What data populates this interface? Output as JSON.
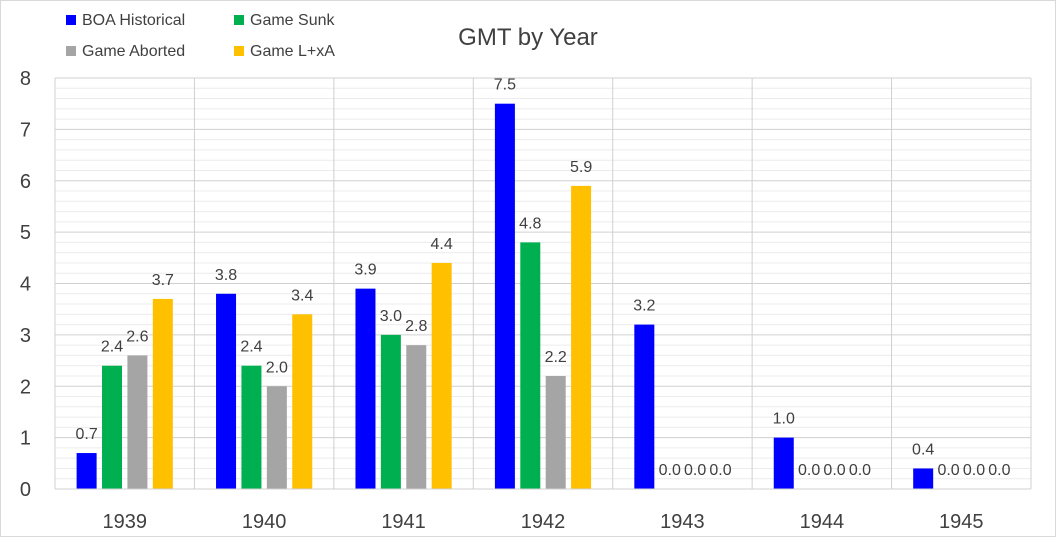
{
  "chart_data": {
    "type": "bar",
    "title": "GMT by Year",
    "xlabel": "",
    "ylabel": "",
    "categories": [
      "1939",
      "1940",
      "1941",
      "1942",
      "1943",
      "1944",
      "1945"
    ],
    "ylim": [
      0,
      8
    ],
    "yticks": [
      0,
      1,
      2,
      3,
      4,
      5,
      6,
      7,
      8
    ],
    "grid": true,
    "legend_position": "top-left",
    "series": [
      {
        "name": "BOA Historical",
        "color": "#0000ff",
        "values": [
          0.7,
          3.8,
          3.9,
          7.5,
          3.2,
          1.0,
          0.4
        ],
        "labels": [
          "0.7",
          "3.8",
          "3.9",
          "7.5",
          "3.2",
          "1.0",
          "0.4"
        ]
      },
      {
        "name": "Game Sunk",
        "color": "#00b050",
        "values": [
          2.4,
          2.4,
          3.0,
          4.8,
          0,
          0,
          0
        ],
        "labels": [
          "2.4",
          "2.4",
          "3.0",
          "4.8",
          "0.0",
          "0.0",
          "0.0"
        ]
      },
      {
        "name": "Game Aborted",
        "color": "#a5a5a5",
        "values": [
          2.6,
          2.0,
          2.8,
          2.2,
          0,
          0,
          0
        ],
        "labels": [
          "2.6",
          "2.0",
          "2.8",
          "2.2",
          "0.0",
          "0.0",
          "0.0"
        ]
      },
      {
        "name": "Game L+xA",
        "color": "#ffc000",
        "values": [
          3.7,
          3.4,
          4.4,
          5.9,
          0,
          0,
          0
        ],
        "labels": [
          "3.7",
          "3.4",
          "4.4",
          "5.9",
          "0.0",
          "0.0",
          "0.0"
        ]
      }
    ]
  }
}
